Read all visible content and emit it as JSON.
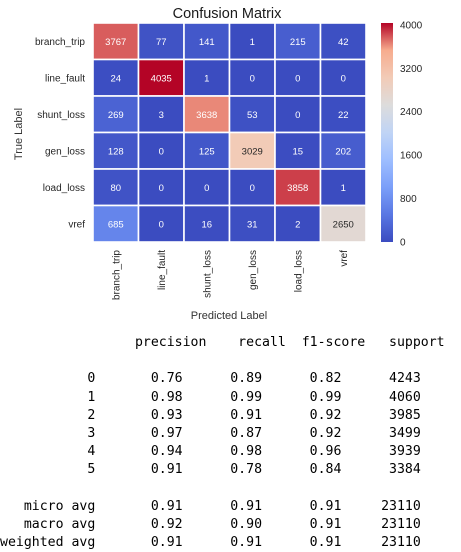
{
  "chart_data": {
    "type": "heatmap",
    "title": "Confusion Matrix",
    "xlabel": "Predicted Label",
    "ylabel": "True Label",
    "labels": [
      "branch_trip",
      "line_fault",
      "shunt_loss",
      "gen_loss",
      "load_loss",
      "vref"
    ],
    "matrix": [
      [
        3767,
        77,
        141,
        1,
        215,
        42
      ],
      [
        24,
        4035,
        1,
        0,
        0,
        0
      ],
      [
        269,
        3,
        3638,
        53,
        0,
        22
      ],
      [
        128,
        0,
        125,
        3029,
        15,
        202
      ],
      [
        80,
        0,
        0,
        0,
        3858,
        1
      ],
      [
        685,
        0,
        16,
        31,
        2,
        2650
      ]
    ],
    "colormap": "coolwarm",
    "colorbar": {
      "vmin": 0,
      "vmax": 4035,
      "ticks": [
        0,
        800,
        1600,
        2400,
        3200,
        4000
      ]
    }
  },
  "report": {
    "header": [
      "precision",
      "recall",
      "f1-score",
      "support"
    ],
    "rows": [
      {
        "label": "0",
        "precision": "0.76",
        "recall": "0.89",
        "f1": "0.82",
        "support": "4243"
      },
      {
        "label": "1",
        "precision": "0.98",
        "recall": "0.99",
        "f1": "0.99",
        "support": "4060"
      },
      {
        "label": "2",
        "precision": "0.93",
        "recall": "0.91",
        "f1": "0.92",
        "support": "3985"
      },
      {
        "label": "3",
        "precision": "0.97",
        "recall": "0.87",
        "f1": "0.92",
        "support": "3499"
      },
      {
        "label": "4",
        "precision": "0.94",
        "recall": "0.98",
        "f1": "0.96",
        "support": "3939"
      },
      {
        "label": "5",
        "precision": "0.91",
        "recall": "0.78",
        "f1": "0.84",
        "support": "3384"
      }
    ],
    "averages": [
      {
        "label": "micro avg",
        "precision": "0.91",
        "recall": "0.91",
        "f1": "0.91",
        "support": "23110"
      },
      {
        "label": "macro avg",
        "precision": "0.92",
        "recall": "0.90",
        "f1": "0.91",
        "support": "23110"
      },
      {
        "label": "weighted avg",
        "precision": "0.91",
        "recall": "0.91",
        "f1": "0.91",
        "support": "23110"
      }
    ]
  }
}
